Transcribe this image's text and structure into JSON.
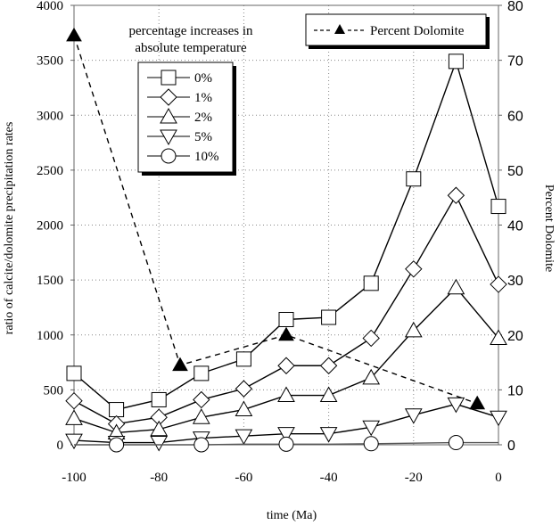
{
  "chart_data": {
    "type": "line",
    "title": "",
    "xlabel": "time (Ma)",
    "ylabel": "ratio of calcite/dolomite precipitation rates",
    "y2label": "Percent Dolomite",
    "xlim": [
      -100,
      0
    ],
    "ylim": [
      0,
      4000
    ],
    "y2lim": [
      0,
      80
    ],
    "xticks": [
      -100,
      -80,
      -60,
      -40,
      -20,
      0
    ],
    "xtick_labels": [
      "-100",
      "-80",
      "-60",
      "-40",
      "-20",
      "0"
    ],
    "yticks": [
      0,
      500,
      1000,
      1500,
      2000,
      2500,
      3000,
      3500,
      4000
    ],
    "ytick_labels": [
      "0",
      "500",
      "1000",
      "1500",
      "2000",
      "2500",
      "3000",
      "3500",
      "4000"
    ],
    "y2ticks": [
      0,
      10,
      20,
      30,
      40,
      50,
      60,
      70,
      80
    ],
    "y2tick_labels": [
      "0",
      "10",
      "20",
      "30",
      "40",
      "50",
      "60",
      "70",
      "80"
    ],
    "grid": true,
    "legend_title": [
      "percentage increases in",
      "absolute temperature"
    ],
    "legend_placement": "upper-left",
    "legend2_placement": "top-right",
    "x": [
      -100,
      -90,
      -80,
      -70,
      -60,
      -50,
      -40,
      -30,
      -20,
      -10,
      0
    ],
    "series": [
      {
        "name": "0%",
        "marker": "square",
        "axis": "left",
        "values": [
          650,
          320,
          410,
          650,
          780,
          1140,
          1160,
          1470,
          2420,
          3490,
          2170
        ]
      },
      {
        "name": "1%",
        "marker": "diamond",
        "axis": "left",
        "values": [
          400,
          190,
          250,
          410,
          510,
          720,
          720,
          970,
          1600,
          2270,
          1460
        ]
      },
      {
        "name": "2%",
        "marker": "triangle-up",
        "axis": "left",
        "values": [
          240,
          110,
          140,
          250,
          320,
          450,
          450,
          610,
          1040,
          1430,
          970
        ]
      },
      {
        "name": "5%",
        "marker": "triangle-down",
        "axis": "left",
        "values": [
          40,
          20,
          20,
          60,
          80,
          100,
          100,
          160,
          270,
          370,
          250
        ]
      },
      {
        "name": "10%",
        "marker": "circle",
        "axis": "left",
        "values": [
          0,
          0,
          0,
          0,
          5,
          5,
          5,
          10,
          15,
          20,
          20
        ],
        "marker_x": [
          -90,
          -70,
          -50,
          -30,
          -10
        ]
      },
      {
        "name": "Percent Dolomite",
        "marker": "triangle-filled",
        "line": "dashed",
        "axis": "right",
        "x": [
          -100,
          -75,
          -50,
          -5
        ],
        "values": [
          74.5,
          14.5,
          20,
          7.5
        ]
      }
    ]
  }
}
